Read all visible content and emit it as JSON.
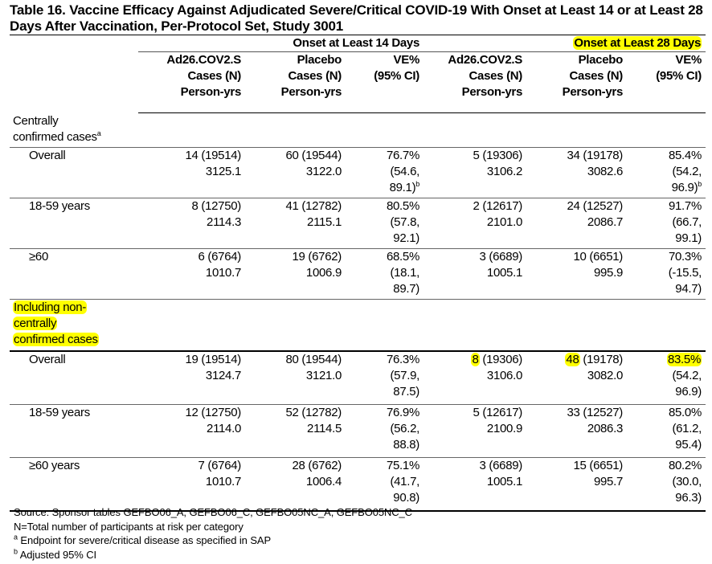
{
  "title": "Table 16. Vaccine Efficacy Against Adjudicated Severe/Critical COVID-19 With Onset at Least 14 or at Least 28 Days After Vaccination, Per-Protocol Set, Study 3001",
  "groups": [
    {
      "label": "Onset at Least 14 Days",
      "highlight": false
    },
    {
      "label": "Onset at Least 28 Days",
      "highlight": true
    }
  ],
  "columns": [
    [
      "Ad26.COV2.S",
      "Cases (N)",
      "Person-yrs"
    ],
    [
      "Placebo",
      "Cases (N)",
      "Person-yrs"
    ],
    [
      "VE%",
      "(95% CI)"
    ],
    [
      "Ad26.COV2.S",
      "Cases (N)",
      "Person-yrs"
    ],
    [
      "Placebo",
      "Cases (N)",
      "Person-yrs"
    ],
    [
      "VE%",
      "(95% CI)"
    ]
  ],
  "highlight_color": "#ffff00",
  "sections": [
    {
      "label": [
        "Centrally",
        "confirmed cases"
      ],
      "label_sup": "a",
      "highlight": false,
      "rows": [
        {
          "label": "Overall",
          "cells": [
            {
              "lines": [
                "14 (19514)",
                "3125.1"
              ]
            },
            {
              "lines": [
                "60 (19544)",
                "3122.0"
              ]
            },
            {
              "lines": [
                "76.7%",
                "(54.6,",
                "89.1)"
              ],
              "sup": "b"
            },
            {
              "lines": [
                "5 (19306)",
                "3106.2"
              ]
            },
            {
              "lines": [
                "34 (19178)",
                "3082.6"
              ]
            },
            {
              "lines": [
                "85.4%",
                "(54.2,",
                "96.9)"
              ],
              "sup": "b"
            }
          ]
        },
        {
          "label": "18-59 years",
          "cells": [
            {
              "lines": [
                "8 (12750)",
                "2114.3"
              ]
            },
            {
              "lines": [
                "41 (12782)",
                "2115.1"
              ]
            },
            {
              "lines": [
                "80.5%",
                "(57.8,",
                "92.1)"
              ]
            },
            {
              "lines": [
                "2 (12617)",
                "2101.0"
              ]
            },
            {
              "lines": [
                "24 (12527)",
                "2086.7"
              ]
            },
            {
              "lines": [
                "91.7%",
                "(66.7,",
                "99.1)"
              ]
            }
          ]
        },
        {
          "label": "≥60",
          "cells": [
            {
              "lines": [
                "6 (6764)",
                "1010.7"
              ]
            },
            {
              "lines": [
                "19 (6762)",
                "1006.9"
              ]
            },
            {
              "lines": [
                "68.5%",
                "(18.1,",
                "89.7)"
              ]
            },
            {
              "lines": [
                "3 (6689)",
                "1005.1"
              ]
            },
            {
              "lines": [
                "10 (6651)",
                "995.9"
              ]
            },
            {
              "lines": [
                "70.3%",
                "(-15.5,",
                "94.7)"
              ]
            }
          ]
        }
      ]
    },
    {
      "label": [
        "Including non-",
        "centrally",
        "confirmed cases"
      ],
      "highlight": true,
      "rows": [
        {
          "label": "Overall",
          "cells": [
            {
              "lines": [
                "19 (19514)",
                "3124.7"
              ]
            },
            {
              "lines": [
                "80 (19544)",
                "3121.0"
              ]
            },
            {
              "lines": [
                "76.3%",
                "(57.9,",
                "87.5)"
              ]
            },
            {
              "lines": [
                "8 (19306)",
                "3106.0"
              ],
              "hl": "8"
            },
            {
              "lines": [
                "48 (19178)",
                "3082.0"
              ],
              "hl": "48"
            },
            {
              "lines": [
                "83.5%",
                "(54.2,",
                "96.9)"
              ],
              "hl": "83.5%"
            }
          ]
        },
        {
          "label": "18-59 years",
          "cells": [
            {
              "lines": [
                "12 (12750)",
                "2114.0"
              ]
            },
            {
              "lines": [
                "52 (12782)",
                "2114.5"
              ]
            },
            {
              "lines": [
                "76.9%",
                "(56.2,",
                "88.8)"
              ]
            },
            {
              "lines": [
                "5 (12617)",
                "2100.9"
              ]
            },
            {
              "lines": [
                "33 (12527)",
                "2086.3"
              ]
            },
            {
              "lines": [
                "85.0%",
                "(61.2,",
                "95.4)"
              ]
            }
          ]
        },
        {
          "label": "≥60 years",
          "cells": [
            {
              "lines": [
                "7 (6764)",
                "1010.7"
              ]
            },
            {
              "lines": [
                "28 (6762)",
                "1006.4"
              ]
            },
            {
              "lines": [
                "75.1%",
                "(41.7,",
                "90.8)"
              ]
            },
            {
              "lines": [
                "3 (6689)",
                "1005.1"
              ]
            },
            {
              "lines": [
                "15 (6651)",
                "995.7"
              ]
            },
            {
              "lines": [
                "80.2%",
                "(30.0,",
                "96.3)"
              ]
            }
          ]
        }
      ]
    }
  ],
  "footnotes": [
    {
      "sup": "",
      "text": "Source: Sponsor tables GEFBO06_A, GEFBO06_C, GEFBO05NC_A, GEFBO05NC_C"
    },
    {
      "sup": "",
      "text": "N=Total number of participants at risk per category"
    },
    {
      "sup": "a",
      "text": " Endpoint for severe/critical disease as specified in SAP"
    },
    {
      "sup": "b",
      "text": " Adjusted 95% CI"
    }
  ]
}
